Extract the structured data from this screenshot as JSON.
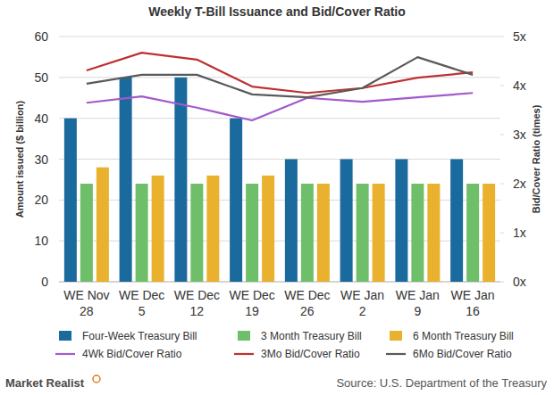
{
  "chart_data": {
    "type": "bar",
    "title": "Weekly T-Bill Issuance and Bid/Cover Ratio",
    "y_label": "Amount issued ($ billion)",
    "y2_label": "Bid/Cover Ratio (times)",
    "source": "Source: U.S. Department of the Treasury",
    "logo": "Market Realist",
    "categories": [
      "WE Nov 28",
      "WE Dec 5",
      "WE Dec 12",
      "WE Dec 19",
      "WE Dec 26",
      "WE Jan 2",
      "WE Jan 9",
      "WE Jan 16"
    ],
    "ylim": [
      0,
      60
    ],
    "yticks": [
      0,
      10,
      20,
      30,
      40,
      50,
      60
    ],
    "y2lim": [
      0,
      5
    ],
    "y2ticks": [
      {
        "value": 0,
        "label": "0x"
      },
      {
        "value": 1,
        "label": "1x"
      },
      {
        "value": 2,
        "label": "2x"
      },
      {
        "value": 3,
        "label": "3x"
      },
      {
        "value": 4,
        "label": "4x"
      },
      {
        "value": 5,
        "label": "5x"
      }
    ],
    "grid": true,
    "legend": "bottom",
    "series": [
      {
        "name": "Four-Week Treasury Bill",
        "type": "bar",
        "color": "#1b6a9e",
        "values": [
          40,
          50,
          50,
          40,
          30,
          30,
          30,
          30
        ]
      },
      {
        "name": "3 Month Treasury Bill",
        "type": "bar",
        "color": "#6fbf6a",
        "values": [
          24,
          24,
          24,
          24,
          24,
          24,
          24,
          24
        ]
      },
      {
        "name": "6 Month Treasury Bill",
        "type": "bar",
        "color": "#e9b12e",
        "values": [
          28,
          26,
          26,
          26,
          24,
          24,
          24,
          24
        ]
      },
      {
        "name": "4Wk Bid/Cover Ratio",
        "type": "line",
        "axis": "y2",
        "color": "#a259cc",
        "values": [
          3.65,
          3.78,
          3.55,
          3.29,
          3.75,
          3.67,
          3.76,
          3.85
        ]
      },
      {
        "name": "3Mo Bid/Cover Ratio",
        "type": "line",
        "axis": "y2",
        "color": "#bf3030",
        "values": [
          4.31,
          4.67,
          4.53,
          3.98,
          3.85,
          3.95,
          4.16,
          4.27
        ]
      },
      {
        "name": "6Mo Bid/Cover Ratio",
        "type": "line",
        "axis": "y2",
        "color": "#5a5a5a",
        "values": [
          4.04,
          4.22,
          4.22,
          3.82,
          3.76,
          3.95,
          4.58,
          4.22
        ]
      }
    ]
  }
}
